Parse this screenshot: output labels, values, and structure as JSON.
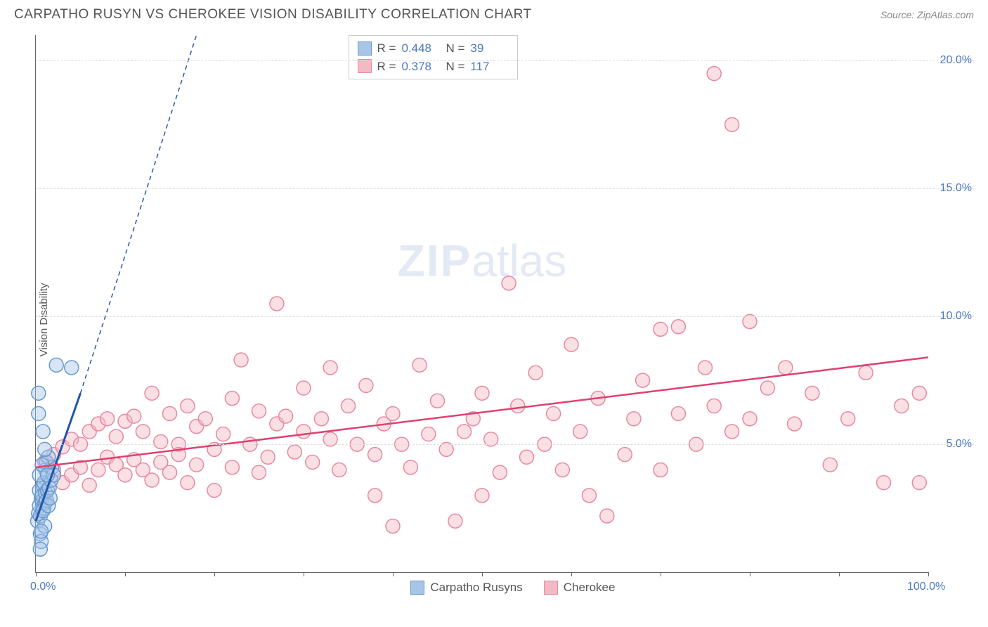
{
  "header": {
    "title": "CARPATHO RUSYN VS CHEROKEE VISION DISABILITY CORRELATION CHART",
    "source": "Source: ZipAtlas.com"
  },
  "chart": {
    "type": "scatter",
    "y_axis_label": "Vision Disability",
    "watermark_zip": "ZIP",
    "watermark_atlas": "atlas",
    "background_color": "#ffffff",
    "grid_color": "#dddddd",
    "axis_color": "#666666",
    "tick_label_color": "#4a7abc",
    "axis_label_color": "#555555",
    "xlim": [
      0,
      100
    ],
    "ylim": [
      0,
      21
    ],
    "x_ticks": [
      0,
      10,
      20,
      30,
      40,
      50,
      60,
      70,
      80,
      90,
      100
    ],
    "y_gridlines": [
      5,
      10,
      15,
      20
    ],
    "y_tick_labels": [
      {
        "v": 5,
        "label": "5.0%"
      },
      {
        "v": 10,
        "label": "10.0%"
      },
      {
        "v": 15,
        "label": "15.0%"
      },
      {
        "v": 20,
        "label": "20.0%"
      }
    ],
    "x_tick_labels": [
      {
        "v": 0,
        "label": "0.0%"
      },
      {
        "v": 100,
        "label": "100.0%"
      }
    ],
    "marker_radius": 10,
    "marker_opacity": 0.45,
    "marker_stroke_width": 1.5,
    "series": [
      {
        "name": "Carpatho Rusyns",
        "color_fill": "#a8c5e8",
        "color_stroke": "#6699cc",
        "trend_color": "#2255aa",
        "trend": {
          "x1": 0,
          "y1": 2.0,
          "x2": 5,
          "y2": 7.0,
          "dash_to_x": 18,
          "dash_to_y": 21
        },
        "R": "0.448",
        "N": "39",
        "points": [
          [
            0.2,
            2.0
          ],
          [
            0.3,
            2.3
          ],
          [
            0.4,
            2.6
          ],
          [
            0.5,
            2.2
          ],
          [
            0.6,
            2.9
          ],
          [
            0.4,
            3.2
          ],
          [
            0.7,
            2.8
          ],
          [
            0.8,
            3.4
          ],
          [
            0.5,
            1.5
          ],
          [
            0.9,
            2.5
          ],
          [
            0.6,
            1.2
          ],
          [
            1.0,
            2.7
          ],
          [
            0.7,
            3.0
          ],
          [
            1.1,
            3.1
          ],
          [
            0.8,
            2.4
          ],
          [
            1.2,
            2.8
          ],
          [
            0.9,
            3.5
          ],
          [
            1.3,
            3.2
          ],
          [
            1.0,
            1.8
          ],
          [
            1.4,
            2.6
          ],
          [
            1.5,
            3.3
          ],
          [
            1.6,
            2.9
          ],
          [
            1.7,
            3.6
          ],
          [
            1.1,
            4.0
          ],
          [
            1.2,
            4.3
          ],
          [
            2.3,
            8.1
          ],
          [
            4.0,
            8.0
          ],
          [
            0.3,
            6.2
          ],
          [
            0.3,
            7.0
          ],
          [
            1.8,
            4.1
          ],
          [
            2.0,
            3.8
          ],
          [
            0.5,
            0.9
          ],
          [
            0.6,
            1.6
          ],
          [
            1.4,
            4.5
          ],
          [
            1.0,
            4.8
          ],
          [
            0.8,
            5.5
          ],
          [
            0.4,
            3.8
          ],
          [
            0.7,
            4.2
          ],
          [
            1.3,
            3.8
          ]
        ]
      },
      {
        "name": "Cherokee",
        "color_fill": "#f5b8c5",
        "color_stroke": "#e68aa0",
        "trend_color": "#e04070",
        "trend": {
          "x1": 0,
          "y1": 4.1,
          "x2": 100,
          "y2": 8.4
        },
        "R": "0.378",
        "N": "117",
        "points": [
          [
            1,
            4.3
          ],
          [
            2,
            4.6
          ],
          [
            2,
            4.0
          ],
          [
            3,
            4.9
          ],
          [
            3,
            3.5
          ],
          [
            4,
            3.8
          ],
          [
            4,
            5.2
          ],
          [
            5,
            4.1
          ],
          [
            5,
            5.0
          ],
          [
            6,
            5.5
          ],
          [
            6,
            3.4
          ],
          [
            7,
            4.0
          ],
          [
            7,
            5.8
          ],
          [
            8,
            4.5
          ],
          [
            8,
            6.0
          ],
          [
            9,
            4.2
          ],
          [
            9,
            5.3
          ],
          [
            10,
            3.8
          ],
          [
            10,
            5.9
          ],
          [
            11,
            4.4
          ],
          [
            11,
            6.1
          ],
          [
            12,
            4.0
          ],
          [
            12,
            5.5
          ],
          [
            13,
            3.6
          ],
          [
            13,
            7.0
          ],
          [
            14,
            5.1
          ],
          [
            14,
            4.3
          ],
          [
            15,
            6.2
          ],
          [
            15,
            3.9
          ],
          [
            16,
            5.0
          ],
          [
            16,
            4.6
          ],
          [
            17,
            6.5
          ],
          [
            17,
            3.5
          ],
          [
            18,
            5.7
          ],
          [
            18,
            4.2
          ],
          [
            19,
            6.0
          ],
          [
            20,
            4.8
          ],
          [
            20,
            3.2
          ],
          [
            21,
            5.4
          ],
          [
            22,
            6.8
          ],
          [
            22,
            4.1
          ],
          [
            23,
            8.3
          ],
          [
            24,
            5.0
          ],
          [
            25,
            6.3
          ],
          [
            25,
            3.9
          ],
          [
            26,
            4.5
          ],
          [
            27,
            10.5
          ],
          [
            27,
            5.8
          ],
          [
            28,
            6.1
          ],
          [
            29,
            4.7
          ],
          [
            30,
            5.5
          ],
          [
            30,
            7.2
          ],
          [
            31,
            4.3
          ],
          [
            32,
            6.0
          ],
          [
            33,
            5.2
          ],
          [
            33,
            8.0
          ],
          [
            34,
            4.0
          ],
          [
            35,
            6.5
          ],
          [
            36,
            5.0
          ],
          [
            37,
            7.3
          ],
          [
            38,
            4.6
          ],
          [
            38,
            3.0
          ],
          [
            39,
            5.8
          ],
          [
            40,
            6.2
          ],
          [
            40,
            1.8
          ],
          [
            41,
            5.0
          ],
          [
            42,
            4.1
          ],
          [
            43,
            8.1
          ],
          [
            44,
            5.4
          ],
          [
            45,
            6.7
          ],
          [
            46,
            4.8
          ],
          [
            47,
            2.0
          ],
          [
            48,
            5.5
          ],
          [
            49,
            6.0
          ],
          [
            50,
            3.0
          ],
          [
            50,
            7.0
          ],
          [
            51,
            5.2
          ],
          [
            52,
            3.9
          ],
          [
            53,
            11.3
          ],
          [
            54,
            6.5
          ],
          [
            55,
            4.5
          ],
          [
            56,
            7.8
          ],
          [
            57,
            5.0
          ],
          [
            58,
            6.2
          ],
          [
            59,
            4.0
          ],
          [
            60,
            8.9
          ],
          [
            61,
            5.5
          ],
          [
            62,
            3.0
          ],
          [
            63,
            6.8
          ],
          [
            64,
            2.2
          ],
          [
            66,
            4.6
          ],
          [
            67,
            6.0
          ],
          [
            68,
            7.5
          ],
          [
            70,
            4.0
          ],
          [
            70,
            9.5
          ],
          [
            72,
            6.2
          ],
          [
            72,
            9.6
          ],
          [
            74,
            5.0
          ],
          [
            75,
            8.0
          ],
          [
            76,
            6.5
          ],
          [
            78,
            5.5
          ],
          [
            76,
            19.5
          ],
          [
            78,
            17.5
          ],
          [
            80,
            9.8
          ],
          [
            80,
            6.0
          ],
          [
            82,
            7.2
          ],
          [
            84,
            8.0
          ],
          [
            85,
            5.8
          ],
          [
            87,
            7.0
          ],
          [
            89,
            4.2
          ],
          [
            91,
            6.0
          ],
          [
            93,
            7.8
          ],
          [
            95,
            3.5
          ],
          [
            97,
            6.5
          ],
          [
            99,
            3.5
          ],
          [
            99,
            7.0
          ]
        ]
      }
    ],
    "legend_top": {
      "r_label": "R =",
      "n_label": "N ="
    },
    "legend_bottom": [
      {
        "label": "Carpatho Rusyns",
        "fill": "#a8c5e8",
        "stroke": "#6699cc"
      },
      {
        "label": "Cherokee",
        "fill": "#f5b8c5",
        "stroke": "#e68aa0"
      }
    ]
  }
}
